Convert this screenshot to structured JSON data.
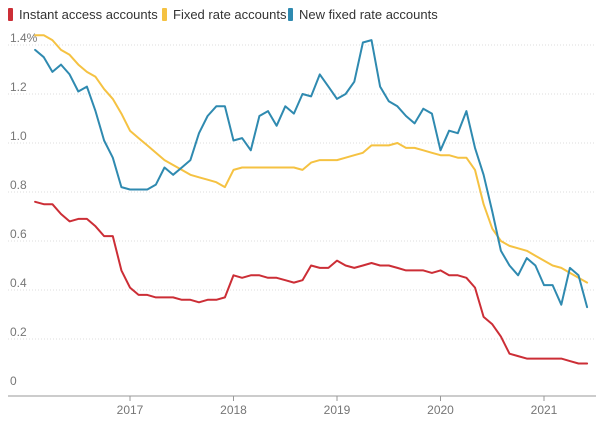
{
  "chart_data": {
    "type": "line",
    "title": "",
    "xlabel": "",
    "ylabel": "",
    "ylim": [
      0,
      1.45
    ],
    "xlim": [
      "2016-01",
      "2021-07"
    ],
    "grid": true,
    "legend_position": "top-left",
    "y_ticks": [
      "0",
      "0.2",
      "0.4",
      "0.6",
      "0.8",
      "1.0",
      "1.2",
      "1.4%"
    ],
    "x_ticks": [
      "2017",
      "2018",
      "2019",
      "2020",
      "2021"
    ],
    "series": [
      {
        "name": "Instant access accounts",
        "color": "#cc2e36",
        "x": [
          "2016-02",
          "2016-03",
          "2016-04",
          "2016-05",
          "2016-06",
          "2016-07",
          "2016-08",
          "2016-09",
          "2016-10",
          "2016-11",
          "2016-12",
          "2017-01",
          "2017-02",
          "2017-03",
          "2017-04",
          "2017-05",
          "2017-06",
          "2017-07",
          "2017-08",
          "2017-09",
          "2017-10",
          "2017-11",
          "2017-12",
          "2018-01",
          "2018-02",
          "2018-03",
          "2018-04",
          "2018-05",
          "2018-06",
          "2018-07",
          "2018-08",
          "2018-09",
          "2018-10",
          "2018-11",
          "2018-12",
          "2019-01",
          "2019-02",
          "2019-03",
          "2019-04",
          "2019-05",
          "2019-06",
          "2019-07",
          "2019-08",
          "2019-09",
          "2019-10",
          "2019-11",
          "2019-12",
          "2020-01",
          "2020-02",
          "2020-03",
          "2020-04",
          "2020-05",
          "2020-06",
          "2020-07",
          "2020-08",
          "2020-09",
          "2020-10",
          "2020-11",
          "2020-12",
          "2021-01",
          "2021-02",
          "2021-03",
          "2021-04",
          "2021-05",
          "2021-06"
        ],
        "values": [
          0.76,
          0.75,
          0.75,
          0.71,
          0.68,
          0.69,
          0.69,
          0.66,
          0.62,
          0.62,
          0.48,
          0.41,
          0.38,
          0.38,
          0.37,
          0.37,
          0.37,
          0.36,
          0.36,
          0.35,
          0.36,
          0.36,
          0.37,
          0.46,
          0.45,
          0.46,
          0.46,
          0.45,
          0.45,
          0.44,
          0.43,
          0.44,
          0.5,
          0.49,
          0.49,
          0.52,
          0.5,
          0.49,
          0.5,
          0.51,
          0.5,
          0.5,
          0.49,
          0.48,
          0.48,
          0.48,
          0.47,
          0.48,
          0.46,
          0.46,
          0.45,
          0.41,
          0.29,
          0.26,
          0.21,
          0.14,
          0.13,
          0.12,
          0.12,
          0.12,
          0.12,
          0.12,
          0.11,
          0.1,
          0.1
        ]
      },
      {
        "name": "Fixed rate accounts",
        "color": "#f5c242",
        "x": [
          "2016-02",
          "2016-03",
          "2016-04",
          "2016-05",
          "2016-06",
          "2016-07",
          "2016-08",
          "2016-09",
          "2016-10",
          "2016-11",
          "2016-12",
          "2017-01",
          "2017-02",
          "2017-03",
          "2017-04",
          "2017-05",
          "2017-06",
          "2017-07",
          "2017-08",
          "2017-09",
          "2017-10",
          "2017-11",
          "2017-12",
          "2018-01",
          "2018-02",
          "2018-03",
          "2018-04",
          "2018-05",
          "2018-06",
          "2018-07",
          "2018-08",
          "2018-09",
          "2018-10",
          "2018-11",
          "2018-12",
          "2019-01",
          "2019-02",
          "2019-03",
          "2019-04",
          "2019-05",
          "2019-06",
          "2019-07",
          "2019-08",
          "2019-09",
          "2019-10",
          "2019-11",
          "2019-12",
          "2020-01",
          "2020-02",
          "2020-03",
          "2020-04",
          "2020-05",
          "2020-06",
          "2020-07",
          "2020-08",
          "2020-09",
          "2020-10",
          "2020-11",
          "2020-12",
          "2021-01",
          "2021-02",
          "2021-03",
          "2021-04",
          "2021-05",
          "2021-06"
        ],
        "values": [
          1.44,
          1.44,
          1.42,
          1.38,
          1.36,
          1.32,
          1.29,
          1.27,
          1.22,
          1.18,
          1.12,
          1.05,
          1.02,
          0.99,
          0.96,
          0.93,
          0.91,
          0.89,
          0.87,
          0.86,
          0.85,
          0.84,
          0.82,
          0.89,
          0.9,
          0.9,
          0.9,
          0.9,
          0.9,
          0.9,
          0.9,
          0.89,
          0.92,
          0.93,
          0.93,
          0.93,
          0.94,
          0.95,
          0.96,
          0.99,
          0.99,
          0.99,
          1.0,
          0.98,
          0.98,
          0.97,
          0.96,
          0.95,
          0.95,
          0.94,
          0.94,
          0.89,
          0.75,
          0.65,
          0.6,
          0.58,
          0.57,
          0.56,
          0.54,
          0.52,
          0.5,
          0.49,
          0.47,
          0.45,
          0.43
        ]
      },
      {
        "name": "New fixed rate accounts",
        "color": "#2f8ab0",
        "x": [
          "2016-02",
          "2016-03",
          "2016-04",
          "2016-05",
          "2016-06",
          "2016-07",
          "2016-08",
          "2016-09",
          "2016-10",
          "2016-11",
          "2016-12",
          "2017-01",
          "2017-02",
          "2017-03",
          "2017-04",
          "2017-05",
          "2017-06",
          "2017-07",
          "2017-08",
          "2017-09",
          "2017-10",
          "2017-11",
          "2017-12",
          "2018-01",
          "2018-02",
          "2018-03",
          "2018-04",
          "2018-05",
          "2018-06",
          "2018-07",
          "2018-08",
          "2018-09",
          "2018-10",
          "2018-11",
          "2018-12",
          "2019-01",
          "2019-02",
          "2019-03",
          "2019-04",
          "2019-05",
          "2019-06",
          "2019-07",
          "2019-08",
          "2019-09",
          "2019-10",
          "2019-11",
          "2019-12",
          "2020-01",
          "2020-02",
          "2020-03",
          "2020-04",
          "2020-05",
          "2020-06",
          "2020-07",
          "2020-08",
          "2020-09",
          "2020-10",
          "2020-11",
          "2020-12",
          "2021-01",
          "2021-02",
          "2021-03",
          "2021-04",
          "2021-05",
          "2021-06"
        ],
        "values": [
          1.38,
          1.35,
          1.29,
          1.32,
          1.28,
          1.21,
          1.23,
          1.13,
          1.01,
          0.94,
          0.82,
          0.81,
          0.81,
          0.81,
          0.83,
          0.9,
          0.87,
          0.9,
          0.93,
          1.04,
          1.11,
          1.15,
          1.15,
          1.01,
          1.02,
          0.97,
          1.11,
          1.13,
          1.07,
          1.15,
          1.12,
          1.2,
          1.19,
          1.28,
          1.23,
          1.18,
          1.2,
          1.25,
          1.41,
          1.42,
          1.23,
          1.17,
          1.15,
          1.11,
          1.08,
          1.14,
          1.12,
          0.97,
          1.05,
          1.04,
          1.13,
          0.98,
          0.87,
          0.72,
          0.56,
          0.5,
          0.46,
          0.53,
          0.5,
          0.42,
          0.42,
          0.34,
          0.49,
          0.46,
          0.33
        ]
      }
    ]
  }
}
